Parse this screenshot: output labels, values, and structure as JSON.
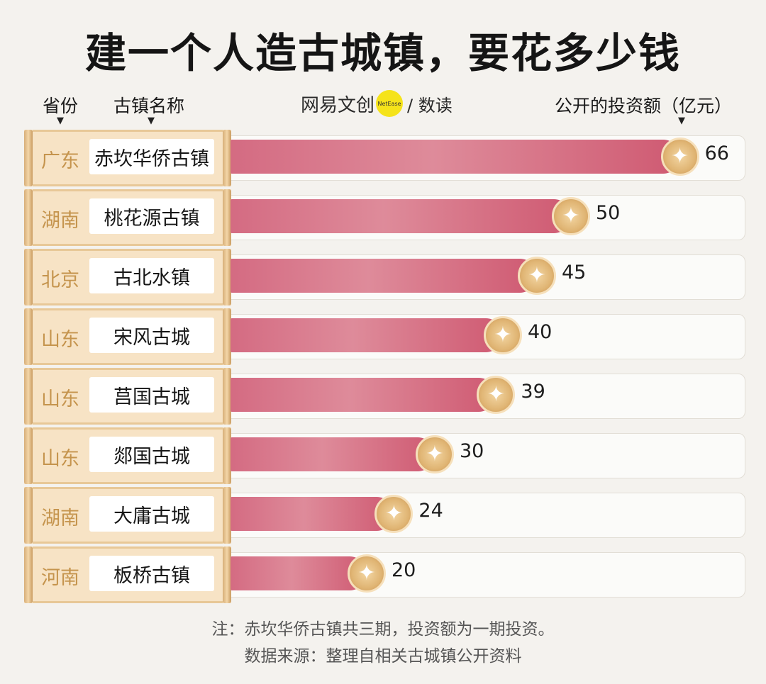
{
  "title": "建一个人造古城镇，要花多少钱",
  "headers": {
    "province": "省份",
    "town": "古镇名称",
    "investment": "公开的投资额（亿元）"
  },
  "brand": {
    "name": "网易文创",
    "badge": "NetEase",
    "suffix": "/ 数读"
  },
  "colors": {
    "bar": "#d46b82",
    "coin": "#e0b574",
    "province_text": "#c5944d",
    "background": "#f4f2ee"
  },
  "chart_data": {
    "type": "bar",
    "orientation": "horizontal",
    "title": "建一个人造古城镇，要花多少钱",
    "ylabel": "公开的投资额（亿元）",
    "categories": [
      "赤坎华侨古镇",
      "桃花源古镇",
      "古北水镇",
      "宋风古城",
      "莒国古城",
      "郯国古城",
      "大庸古城",
      "板桥古镇"
    ],
    "provinces": [
      "广东",
      "湖南",
      "北京",
      "山东",
      "山东",
      "山东",
      "湖南",
      "河南"
    ],
    "values": [
      66,
      50,
      45,
      40,
      39,
      30,
      24,
      20
    ]
  },
  "notes": {
    "note": "注：赤坎华侨古镇共三期，投资额为一期投资。",
    "source": "数据来源：整理自相关古城镇公开资料"
  }
}
